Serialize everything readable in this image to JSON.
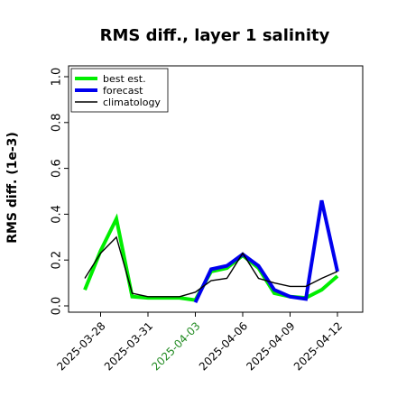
{
  "chart_data": {
    "type": "line",
    "title": "RMS diff., layer 1 salinity",
    "xlabel": "",
    "ylabel": "RMS diff. (1e-3)",
    "ylim": [
      0.0,
      1.0
    ],
    "yticks": [
      0.0,
      0.2,
      0.4,
      0.6,
      0.8,
      1.0
    ],
    "ytick_labels": [
      "0.0",
      "0.2",
      "0.4",
      "0.6",
      "0.8",
      "1.0"
    ],
    "xlim": [
      "2025-03-26",
      "2025-04-13"
    ],
    "x": [
      "2025-03-27",
      "2025-03-28",
      "2025-03-29",
      "2025-03-30",
      "2025-03-31",
      "2025-04-01",
      "2025-04-02",
      "2025-04-03",
      "2025-04-04",
      "2025-04-05",
      "2025-04-06",
      "2025-04-07",
      "2025-04-08",
      "2025-04-09",
      "2025-04-10",
      "2025-04-11",
      "2025-04-12"
    ],
    "xticks": [
      "2025-03-28",
      "2025-03-31",
      "2025-04-03",
      "2025-04-06",
      "2025-04-09",
      "2025-04-12"
    ],
    "xtick_labels": [
      "2025-03-28",
      "2025-03-31",
      "2025-04-03",
      "2025-04-06",
      "2025-04-09",
      "2025-04-12"
    ],
    "highlight_tick": "2025-04-03",
    "highlight_color": "#228b22",
    "grid": false,
    "legend_position": "top-left",
    "series": [
      {
        "name": "best est.",
        "color": "#00ee00",
        "values": [
          0.07,
          0.24,
          0.38,
          0.04,
          0.035,
          0.035,
          0.035,
          0.025,
          0.15,
          0.165,
          0.22,
          0.165,
          0.055,
          0.04,
          0.035,
          0.07,
          0.13
        ]
      },
      {
        "name": "forecast",
        "color": "#0000ee",
        "values": [
          null,
          null,
          null,
          null,
          null,
          null,
          null,
          0.015,
          0.16,
          0.175,
          0.225,
          0.175,
          0.07,
          0.04,
          0.03,
          0.46,
          0.15
        ]
      },
      {
        "name": "climatology",
        "color": "#000000",
        "values": [
          0.12,
          0.23,
          0.3,
          0.055,
          0.04,
          0.04,
          0.04,
          0.06,
          0.11,
          0.12,
          0.23,
          0.12,
          0.1,
          0.085,
          0.085,
          0.12,
          0.15
        ]
      }
    ]
  }
}
